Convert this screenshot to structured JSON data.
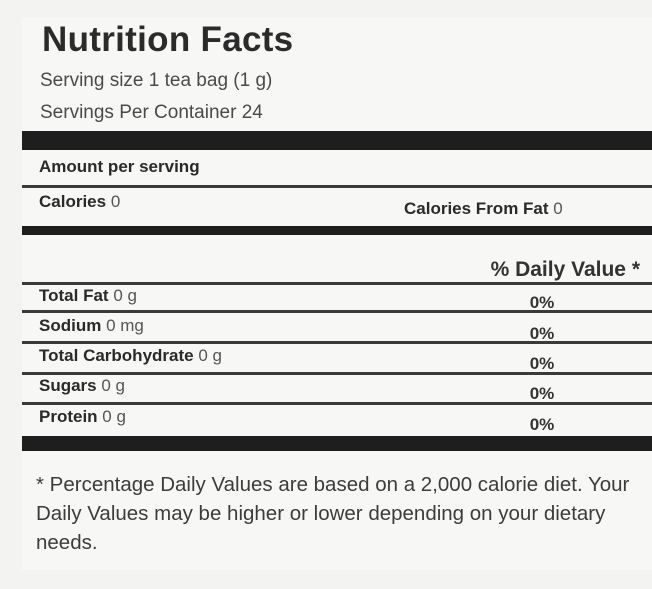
{
  "header": {
    "title": "Nutrition Facts",
    "serving_size": "Serving size 1 tea bag (1 g)",
    "servings_per_container": "Servings Per Container 24"
  },
  "amount_per_serving": "Amount per serving",
  "calories": {
    "label": "Calories",
    "value": "0"
  },
  "calories_from_fat": {
    "label": "Calories From Fat",
    "value": "0"
  },
  "daily_value_header": "% Daily Value *",
  "nutrients": [
    {
      "name": "Total Fat",
      "amount": "0 g",
      "dv": "0%"
    },
    {
      "name": "Sodium",
      "amount": "0 mg",
      "dv": "0%"
    },
    {
      "name": "Total Carbohydrate",
      "amount": "0 g",
      "dv": "0%"
    },
    {
      "name": "Sugars",
      "amount": "0 g",
      "dv": "0%"
    },
    {
      "name": "Protein",
      "amount": "0 g",
      "dv": "0%"
    }
  ],
  "footnote": "* Percentage Daily Values are based on a 2,000 calorie diet. Your Daily Values may be higher or lower depending on your dietary needs."
}
